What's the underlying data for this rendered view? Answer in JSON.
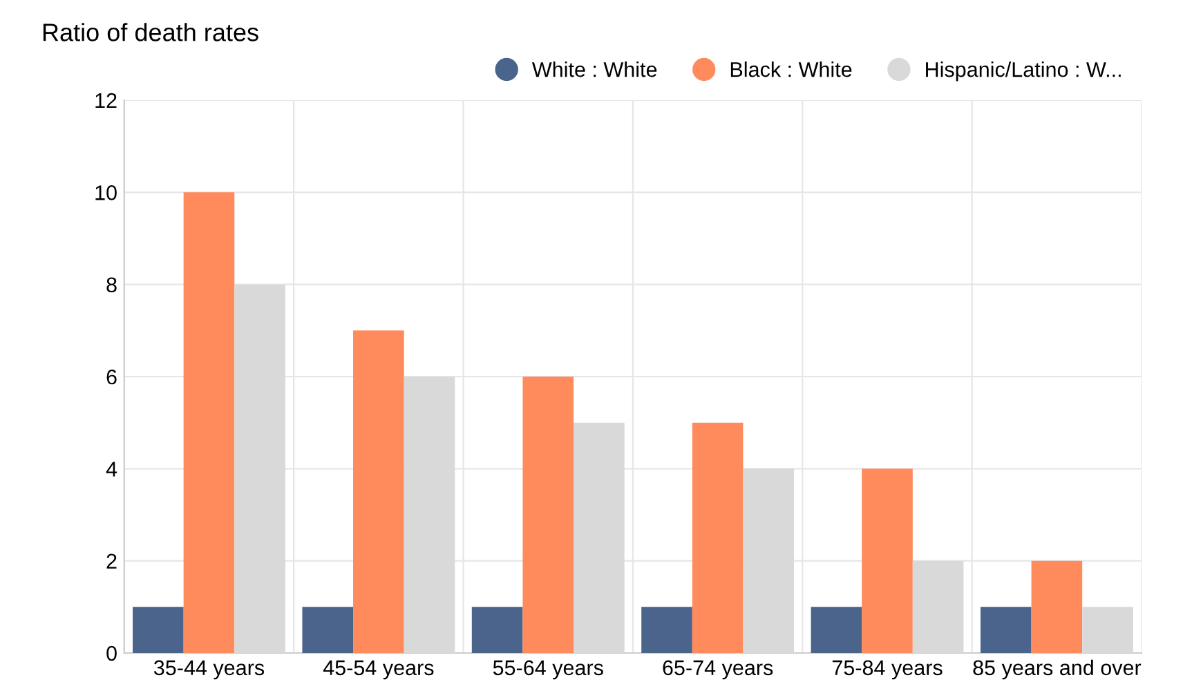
{
  "chart_data": {
    "type": "bar",
    "title": "Ratio of death rates",
    "categories": [
      "35-44 years",
      "45-54 years",
      "55-64 years",
      "65-74 years",
      "75-84 years",
      "85 years and over"
    ],
    "series": [
      {
        "name": "White : White",
        "color": "#4a648c",
        "values": [
          1,
          1,
          1,
          1,
          1,
          1
        ]
      },
      {
        "name": "Black : White",
        "color": "#ff8a5c",
        "values": [
          10,
          7,
          6,
          5,
          4,
          2
        ]
      },
      {
        "name": "Hispanic/Latino : W...",
        "color": "#d9d9d9",
        "values": [
          8,
          6,
          5,
          4,
          2,
          1
        ]
      }
    ],
    "ylim": [
      0,
      12
    ],
    "yticks": [
      0,
      2,
      4,
      6,
      8,
      10,
      12
    ],
    "grid": true,
    "legend": "top right"
  }
}
